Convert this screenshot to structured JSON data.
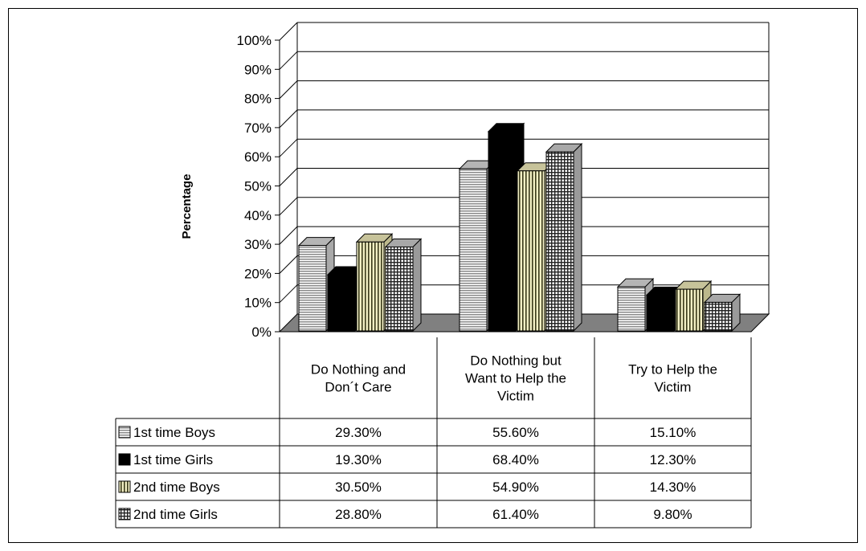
{
  "chart_data": {
    "type": "bar",
    "ylabel": "Percentage",
    "ylim": [
      0,
      100
    ],
    "y_tick_labels": [
      "0%",
      "10%",
      "20%",
      "30%",
      "40%",
      "50%",
      "60%",
      "70%",
      "80%",
      "90%",
      "100%"
    ],
    "grid": true,
    "style": "3d-clustered-column-with-data-table",
    "categories": [
      [
        "Do Nothing and",
        "Don´t Care"
      ],
      [
        "Do Nothing but",
        "Want to Help the",
        "Victim"
      ],
      [
        "Try to Help the",
        "Victim"
      ]
    ],
    "series": [
      {
        "name": "1st time Boys",
        "values": [
          29.3,
          55.6,
          15.1
        ],
        "labels": [
          "29.30%",
          "55.60%",
          "15.10%"
        ],
        "pattern": "hlines"
      },
      {
        "name": "1st time Girls",
        "values": [
          19.3,
          68.4,
          12.3
        ],
        "labels": [
          "19.30%",
          "68.40%",
          "12.30%"
        ],
        "pattern": "solid"
      },
      {
        "name": "2nd time  Boys",
        "values": [
          30.5,
          54.9,
          14.3
        ],
        "labels": [
          "30.50%",
          "54.90%",
          "14.30%"
        ],
        "pattern": "vlines"
      },
      {
        "name": "2nd time  Girls",
        "values": [
          28.8,
          61.4,
          9.8
        ],
        "labels": [
          "28.80%",
          "61.40%",
          "9.80%"
        ],
        "pattern": "grid"
      }
    ],
    "colors": {
      "floor": "#808080",
      "wall": "#ffffff",
      "gridline": "#000000",
      "bar_edge": "#000000",
      "bar_light": "#c0c0c0",
      "bar_dark": "#000000",
      "bar_cream": "#f0eec0"
    }
  }
}
